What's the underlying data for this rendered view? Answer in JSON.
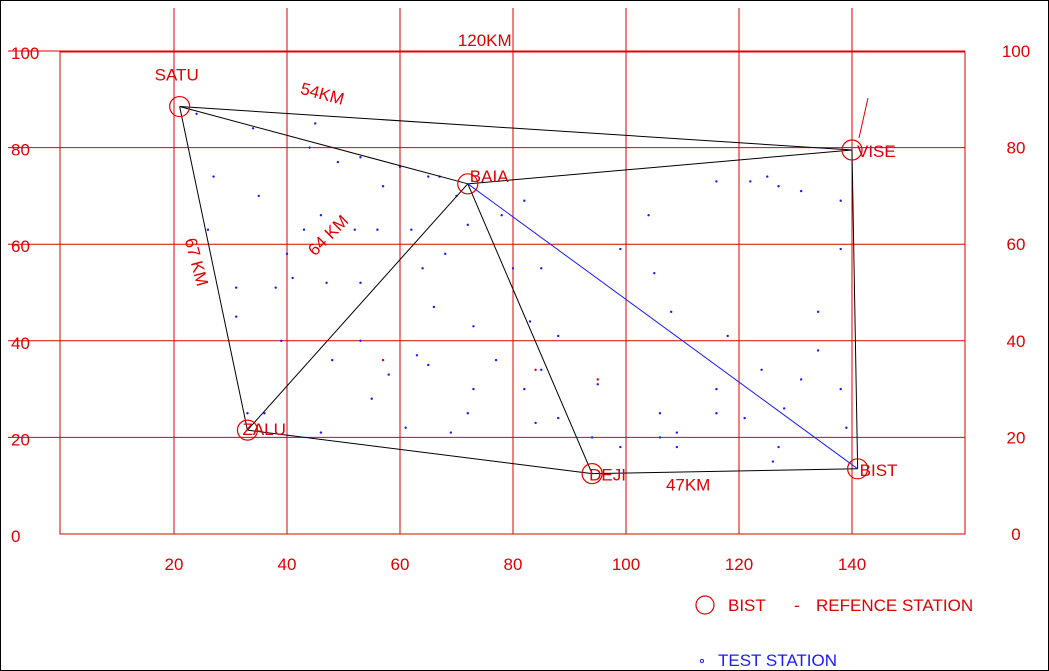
{
  "colors": {
    "grid": "#e00000",
    "label": "#e00000",
    "baseline": "#000000",
    "diagonal": "#1a1aff",
    "test_station": "#1a1aff",
    "border": "#000000"
  },
  "axes": {
    "x_ticks": [
      "20",
      "40",
      "60",
      "80",
      "100",
      "120",
      "140"
    ],
    "y_ticks_left": [
      "0",
      "20",
      "40",
      "60",
      "80",
      "100"
    ],
    "y_ticks_right": [
      "0",
      "20",
      "40",
      "60",
      "80",
      "100"
    ]
  },
  "stations": [
    {
      "name": "SATU",
      "x": 21,
      "y": 88.5
    },
    {
      "name": "VISE",
      "x": 140,
      "y": 79.5
    },
    {
      "name": "BAIA",
      "x": 72,
      "y": 72.5
    },
    {
      "name": "ZALU",
      "x": 33,
      "y": 21.5
    },
    {
      "name": "DEJI",
      "x": 94,
      "y": 12.5
    },
    {
      "name": "BIST",
      "x": 141,
      "y": 13.5
    }
  ],
  "baselines": [
    [
      "SATU",
      "VISE"
    ],
    [
      "SATU",
      "BAIA"
    ],
    [
      "SATU",
      "ZALU"
    ],
    [
      "BAIA",
      "VISE"
    ],
    [
      "BAIA",
      "ZALU"
    ],
    [
      "BAIA",
      "DEJI"
    ],
    [
      "ZALU",
      "DEJI"
    ],
    [
      "DEJI",
      "BIST"
    ],
    [
      "VISE",
      "BIST"
    ]
  ],
  "diagonal_baselines": [
    [
      "BAIA",
      "BIST"
    ]
  ],
  "distance_labels": [
    {
      "text": "120KM",
      "x": 75,
      "y": 101,
      "rotate": 0
    },
    {
      "text": "54KM",
      "x": 46,
      "y": 90,
      "rotate": 15
    },
    {
      "text": "64 KM",
      "x": 48,
      "y": 61,
      "rotate": -45
    },
    {
      "text": "67 KM",
      "x": 23,
      "y": 56,
      "rotate": 75
    },
    {
      "text": "47KM",
      "x": 111,
      "y": 9,
      "rotate": 0
    }
  ],
  "test_stations": [
    [
      24,
      87
    ],
    [
      34,
      84
    ],
    [
      45,
      85
    ],
    [
      44,
      80
    ],
    [
      49,
      77
    ],
    [
      53,
      78
    ],
    [
      57,
      72
    ],
    [
      60,
      76
    ],
    [
      65,
      74
    ],
    [
      67,
      74
    ],
    [
      70,
      70
    ],
    [
      82,
      69
    ],
    [
      78,
      66
    ],
    [
      27,
      74
    ],
    [
      35,
      70
    ],
    [
      26,
      63
    ],
    [
      40,
      58
    ],
    [
      43,
      63
    ],
    [
      46,
      66
    ],
    [
      52,
      63
    ],
    [
      56,
      63
    ],
    [
      62,
      63
    ],
    [
      64,
      55
    ],
    [
      68,
      58
    ],
    [
      72,
      64
    ],
    [
      80,
      55
    ],
    [
      85,
      55
    ],
    [
      99,
      59
    ],
    [
      104,
      66
    ],
    [
      105,
      54
    ],
    [
      31,
      51
    ],
    [
      41,
      53
    ],
    [
      38,
      51
    ],
    [
      47,
      52
    ],
    [
      53,
      52
    ],
    [
      66,
      47
    ],
    [
      73,
      43
    ],
    [
      83,
      44
    ],
    [
      88,
      41
    ],
    [
      31,
      45
    ],
    [
      39,
      40
    ],
    [
      48,
      36
    ],
    [
      53,
      40
    ],
    [
      58,
      33
    ],
    [
      63,
      37
    ],
    [
      65,
      35
    ],
    [
      77,
      36
    ],
    [
      73,
      30
    ],
    [
      82,
      30
    ],
    [
      85,
      34
    ],
    [
      95,
      31
    ],
    [
      108,
      46
    ],
    [
      118,
      41
    ],
    [
      116,
      30
    ],
    [
      124,
      34
    ],
    [
      128,
      26
    ],
    [
      131,
      32
    ],
    [
      134,
      38
    ],
    [
      134,
      46
    ],
    [
      138,
      30
    ],
    [
      33,
      25
    ],
    [
      36,
      25
    ],
    [
      46,
      21
    ],
    [
      55,
      28
    ],
    [
      61,
      22
    ],
    [
      69,
      21
    ],
    [
      72,
      25
    ],
    [
      84,
      23
    ],
    [
      88,
      24
    ],
    [
      94,
      20
    ],
    [
      99,
      18
    ],
    [
      106,
      25
    ],
    [
      106,
      20
    ],
    [
      109,
      21
    ],
    [
      109,
      18
    ],
    [
      116,
      25
    ],
    [
      121,
      24
    ],
    [
      126,
      15
    ],
    [
      127,
      18
    ],
    [
      138,
      59
    ],
    [
      139,
      22
    ],
    [
      116,
      73
    ],
    [
      122,
      73
    ],
    [
      125,
      74
    ],
    [
      127,
      72
    ],
    [
      131,
      71
    ],
    [
      138,
      69
    ]
  ],
  "test_station_red_marks": [
    [
      57,
      36
    ],
    [
      84,
      34
    ],
    [
      95,
      32
    ]
  ],
  "legend": {
    "reference": {
      "symbol": "BIST",
      "dash": "-",
      "label": "REFENCE STATION"
    },
    "test": {
      "label": "TEST STATION"
    }
  }
}
